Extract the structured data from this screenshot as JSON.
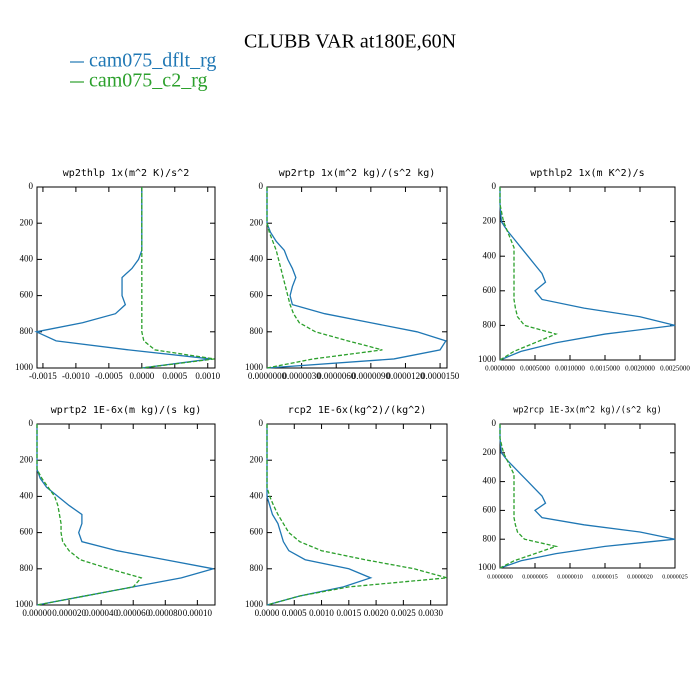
{
  "title": "CLUBB VAR at180E,60N",
  "legend": [
    {
      "name": "cam075_dflt_rg",
      "color": "#1f77b4"
    },
    {
      "name": "cam075_c2_rg",
      "color": "#2ca02c"
    }
  ],
  "chart_data": [
    {
      "type": "line",
      "title": "wp2thlp   1x(m^2 K)/s^2",
      "y": [
        0,
        100,
        200,
        250,
        300,
        350,
        400,
        450,
        500,
        550,
        600,
        650,
        700,
        750,
        800,
        850,
        900,
        950,
        1000
      ],
      "series": [
        {
          "values": [
            0,
            0,
            0,
            0,
            0,
            0,
            -5e-05,
            -0.00015,
            -0.0003,
            -0.0003,
            -0.0003,
            -0.00025,
            -0.0004,
            -0.0009,
            -0.0016,
            -0.0013,
            -0.0002,
            0.00105,
            0
          ]
        },
        {
          "values": [
            0,
            0,
            0,
            0,
            0,
            0,
            0,
            0,
            0,
            0,
            0,
            0,
            0,
            0,
            0,
            3e-05,
            0.0002,
            0.0011,
            0
          ]
        }
      ],
      "xlim": [
        -0.00159,
        0.00111
      ],
      "xticks": [
        {
          "value": -0.0015,
          "label": "-0.0015"
        },
        {
          "value": -0.001,
          "label": "-0.0010"
        },
        {
          "value": -0.0005,
          "label": "-0.0005"
        },
        {
          "value": 0,
          "label": "0.0000"
        },
        {
          "value": 0.0005,
          "label": "0.0005"
        },
        {
          "value": 0.001,
          "label": "0.0010"
        }
      ],
      "ylim": [
        1000,
        0
      ],
      "yticks": [
        0,
        200,
        400,
        600,
        800,
        1000
      ]
    },
    {
      "type": "line",
      "title": "wp2rtp   1x(m^2 kg)/(s^2 kg)",
      "y": [
        0,
        100,
        200,
        250,
        300,
        350,
        400,
        450,
        500,
        550,
        600,
        650,
        700,
        750,
        800,
        850,
        900,
        950,
        1000
      ],
      "series": [
        {
          "values": [
            0,
            0,
            0,
            3e-07,
            8e-07,
            1.5e-06,
            1.8e-06,
            2.2e-06,
            2.5e-06,
            2.2e-06,
            2e-06,
            2.2e-06,
            5e-06,
            9e-06,
            1.3e-05,
            1.55e-05,
            1.5e-05,
            1.1e-05,
            0
          ]
        },
        {
          "values": [
            0,
            0,
            0,
            2e-07,
            5e-07,
            8e-07,
            1e-06,
            1.2e-06,
            1.4e-06,
            1.6e-06,
            1.8e-06,
            2e-06,
            2.3e-06,
            2.8e-06,
            4.2e-06,
            7e-06,
            1e-05,
            4e-06,
            0
          ]
        }
      ],
      "xlim": [
        0,
        1.56e-05
      ],
      "xticks": [
        {
          "value": 0,
          "label": "0.0000000"
        },
        {
          "value": 3e-06,
          "label": "0.0000030"
        },
        {
          "value": 6e-06,
          "label": "0.0000060"
        },
        {
          "value": 9e-06,
          "label": "0.0000090"
        },
        {
          "value": 1.2e-05,
          "label": "0.0000120"
        },
        {
          "value": 1.5e-05,
          "label": "0.0000150"
        }
      ],
      "ylim": [
        1000,
        0
      ],
      "yticks": [
        0,
        200,
        400,
        600,
        800,
        1000
      ]
    },
    {
      "type": "line",
      "title": "wpthlp2   1x(m K^2)/s",
      "y": [
        0,
        100,
        200,
        250,
        300,
        350,
        400,
        450,
        500,
        550,
        600,
        650,
        700,
        750,
        800,
        850,
        900,
        950,
        1000
      ],
      "series": [
        {
          "values": [
            0,
            0,
            2e-05,
            0.0001,
            0.0002,
            0.0003,
            0.0004,
            0.0005,
            0.0006,
            0.00065,
            0.0005,
            0.0006,
            0.0012,
            0.002,
            0.0025,
            0.0015,
            0.0008,
            0.0003,
            0
          ]
        },
        {
          "values": [
            0,
            0,
            5e-05,
            0.0001,
            0.00015,
            0.0002,
            0.0002,
            0.0002,
            0.0002,
            0.0002,
            0.0002,
            0.0002,
            0.00022,
            0.00025,
            0.00035,
            0.0008,
            0.0005,
            0.0002,
            0
          ]
        }
      ],
      "xlim": [
        0,
        0.0025
      ],
      "xticks": [
        {
          "value": 0,
          "label": "0.0000000"
        },
        {
          "value": 0.0005,
          "label": "0.0005000"
        },
        {
          "value": 0.001,
          "label": "0.0010000"
        },
        {
          "value": 0.0015,
          "label": "0.0015000"
        },
        {
          "value": 0.002,
          "label": "0.0020000"
        },
        {
          "value": 0.0025,
          "label": "0.0025000"
        }
      ],
      "ylim": [
        1000,
        0
      ],
      "yticks": [
        0,
        200,
        400,
        600,
        800,
        1000
      ]
    },
    {
      "type": "line",
      "title": "wprtp2   1E-6x(m kg)/(s kg)",
      "y": [
        0,
        100,
        200,
        250,
        300,
        350,
        400,
        450,
        500,
        550,
        600,
        650,
        700,
        750,
        800,
        850,
        900,
        950,
        1000
      ],
      "series": [
        {
          "values": [
            0,
            0,
            0,
            0,
            2e-06,
            6e-06,
            1.3e-05,
            2e-05,
            2.8e-05,
            2.8e-05,
            2.6e-05,
            2.8e-05,
            5e-05,
            8e-05,
            0.00011,
            9e-05,
            6e-05,
            3e-05,
            0
          ]
        },
        {
          "values": [
            0,
            0,
            0,
            0,
            3e-06,
            7e-06,
            1.1e-05,
            1.3e-05,
            1.4e-05,
            1.5e-05,
            1.5e-05,
            1.6e-05,
            2e-05,
            2.7e-05,
            4.5e-05,
            6.5e-05,
            6e-05,
            3e-05,
            0
          ]
        }
      ],
      "xlim": [
        0,
        0.000111
      ],
      "xticks": [
        {
          "value": 0,
          "label": "0.00000"
        },
        {
          "value": 2e-05,
          "label": "0.000020"
        },
        {
          "value": 4e-05,
          "label": "0.000040"
        },
        {
          "value": 6e-05,
          "label": "0.000060"
        },
        {
          "value": 8e-05,
          "label": "0.000080"
        },
        {
          "value": 0.0001,
          "label": "0.00010"
        }
      ],
      "ylim": [
        1000,
        0
      ],
      "yticks": [
        0,
        200,
        400,
        600,
        800,
        1000
      ]
    },
    {
      "type": "line",
      "title": "rcp2   1E-6x(kg^2)/(kg^2)",
      "y": [
        0,
        100,
        200,
        250,
        300,
        350,
        400,
        450,
        500,
        550,
        600,
        650,
        700,
        750,
        800,
        850,
        900,
        950,
        1000
      ],
      "series": [
        {
          "values": [
            0,
            0,
            0,
            0,
            0,
            0,
            0,
            5e-05,
            0.0001,
            0.0002,
            0.00025,
            0.0003,
            0.0004,
            0.0007,
            0.0015,
            0.0019,
            0.0014,
            0.0006,
            0
          ]
        },
        {
          "values": [
            0,
            0,
            0,
            0,
            0,
            0,
            5e-05,
            0.00012,
            0.0002,
            0.0003,
            0.0004,
            0.0006,
            0.001,
            0.0018,
            0.0027,
            0.0033,
            0.0015,
            0.0006,
            0
          ]
        }
      ],
      "xlim": [
        0,
        0.0033
      ],
      "xticks": [
        {
          "value": 0,
          "label": "0.0000"
        },
        {
          "value": 0.0005,
          "label": "0.0005"
        },
        {
          "value": 0.001,
          "label": "0.0010"
        },
        {
          "value": 0.0015,
          "label": "0.0015"
        },
        {
          "value": 0.002,
          "label": "0.0020"
        },
        {
          "value": 0.0025,
          "label": "0.0025"
        },
        {
          "value": 0.003,
          "label": "0.0030"
        }
      ],
      "ylim": [
        1000,
        0
      ],
      "yticks": [
        0,
        200,
        400,
        600,
        800,
        1000
      ]
    },
    {
      "type": "line",
      "title": "wp2rcp  1E-3x(m^2 kg)/(s^2 kg)",
      "y": [
        0,
        100,
        200,
        250,
        300,
        350,
        400,
        450,
        500,
        550,
        600,
        650,
        700,
        750,
        800,
        850,
        900,
        950,
        1000
      ],
      "series": [
        {
          "values": [
            0,
            0,
            2e-08,
            1e-07,
            2e-07,
            3e-07,
            4e-07,
            5e-07,
            6e-07,
            6.5e-07,
            5e-07,
            6e-07,
            1.2e-06,
            2e-06,
            2.5e-06,
            1.5e-06,
            8e-07,
            3e-07,
            0
          ]
        },
        {
          "values": [
            0,
            0,
            5e-08,
            1e-07,
            1.5e-07,
            2e-07,
            2e-07,
            2e-07,
            2e-07,
            2e-07,
            2e-07,
            2e-07,
            2.2e-07,
            2.5e-07,
            3.5e-07,
            8e-07,
            5e-07,
            2e-07,
            0
          ]
        }
      ],
      "xlim": [
        0,
        2.5e-06
      ],
      "xticks": [
        {
          "value": 0,
          "label": "0.0000000"
        },
        {
          "value": 5e-07,
          "label": "0.0000005"
        },
        {
          "value": 1e-06,
          "label": "0.0000010"
        },
        {
          "value": 1.5e-06,
          "label": "0.0000015"
        },
        {
          "value": 2e-06,
          "label": "0.0000020"
        },
        {
          "value": 2.5e-06,
          "label": "0.0000025"
        }
      ],
      "ylim": [
        1000,
        0
      ],
      "yticks": [
        0,
        200,
        400,
        600,
        800,
        1000
      ]
    }
  ]
}
